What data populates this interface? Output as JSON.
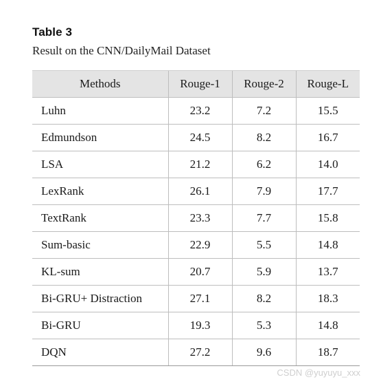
{
  "caption": {
    "title": "Table 3",
    "subtitle": "Result on the CNN/DailyMail Dataset"
  },
  "table": {
    "headers": [
      "Methods",
      "Rouge-1",
      "Rouge-2",
      "Rouge-L"
    ],
    "rows": [
      [
        "Luhn",
        "23.2",
        "7.2",
        "15.5"
      ],
      [
        "Edmundson",
        "24.5",
        "8.2",
        "16.7"
      ],
      [
        "LSA",
        "21.2",
        "6.2",
        "14.0"
      ],
      [
        "LexRank",
        "26.1",
        "7.9",
        "17.7"
      ],
      [
        "TextRank",
        "23.3",
        "7.7",
        "15.8"
      ],
      [
        "Sum-basic",
        "22.9",
        "5.5",
        "14.8"
      ],
      [
        "KL-sum",
        "20.7",
        "5.9",
        "13.7"
      ],
      [
        "Bi-GRU+ Distraction",
        "27.1",
        "8.2",
        "18.3"
      ],
      [
        "Bi-GRU",
        "19.3",
        "5.3",
        "14.8"
      ],
      [
        "DQN",
        "27.2",
        "9.6",
        "18.7"
      ]
    ]
  },
  "watermark": "CSDN @yuyuyu_xxx"
}
